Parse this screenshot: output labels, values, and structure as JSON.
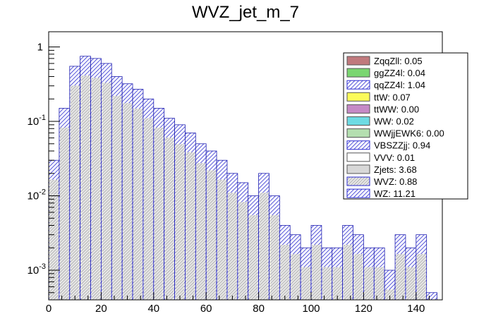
{
  "chart_data": {
    "type": "bar",
    "title": "WVZ_jet_m_7",
    "xlabel": "",
    "ylabel": "",
    "xlim": [
      0,
      150
    ],
    "ylim": [
      0.0004,
      1.6
    ],
    "y_scale": "log",
    "grid": false,
    "legend_position": "top-right",
    "x_ticks": [
      "0",
      "20",
      "40",
      "60",
      "80",
      "100",
      "120",
      "140"
    ],
    "y_ticks": [
      {
        "mantissa": "10",
        "exp": "-3"
      },
      {
        "mantissa": "10",
        "exp": "-2"
      },
      {
        "mantissa": "10",
        "exp": "-1"
      },
      {
        "mantissa": "1",
        "exp": ""
      }
    ],
    "stack_totals_approx": {
      "x_bin_centers": [
        2,
        6,
        10,
        14,
        18,
        22,
        26,
        30,
        34,
        38,
        42,
        46,
        50,
        54,
        58,
        62,
        66,
        70,
        74,
        78,
        82,
        86,
        90,
        94,
        98,
        102,
        106,
        110,
        114,
        118,
        122,
        126,
        130,
        134,
        138,
        142,
        146
      ],
      "values": [
        0.03,
        0.15,
        0.55,
        0.75,
        0.7,
        0.6,
        0.4,
        0.32,
        0.27,
        0.2,
        0.15,
        0.11,
        0.09,
        0.07,
        0.05,
        0.04,
        0.03,
        0.02,
        0.015,
        0.01,
        0.02,
        0.01,
        0.004,
        0.003,
        0.002,
        0.004,
        0.002,
        0.002,
        0.004,
        0.003,
        0.002,
        0.002,
        0.001,
        0.003,
        0.002,
        0.003,
        0.0005
      ]
    },
    "series": [
      {
        "name": "ZqqZll: 0.05",
        "color": "#c0797d",
        "hatch": false
      },
      {
        "name": "ggZZ4l: 0.04",
        "color": "#7ad671",
        "hatch": false
      },
      {
        "name": "qqZZ4l: 1.04",
        "color": "#4a4cc6",
        "hatch": true
      },
      {
        "name": "ttW: 0.07",
        "color": "#fbfb5a",
        "hatch": false
      },
      {
        "name": "ttWW: 0.00",
        "color": "#c58ac6",
        "hatch": false
      },
      {
        "name": "WW: 0.02",
        "color": "#6ddbe3",
        "hatch": false
      },
      {
        "name": "WWjjEWK6: 0.00",
        "color": "#b4dfb0",
        "hatch": false
      },
      {
        "name": "VBSZZjj: 0.94",
        "color": "#5e5eb0",
        "hatch": true
      },
      {
        "name": "VVV: 0.01",
        "color": "#ffffff",
        "hatch": false
      },
      {
        "name": "Zjets: 3.68",
        "color": "#d8d8d8",
        "hatch": false
      },
      {
        "name": "WVZ: 0.88",
        "color": "#9a9a9a",
        "hatch": true
      },
      {
        "name": "WZ: 11.21",
        "color": "#a0a0d8",
        "hatch": true
      }
    ]
  }
}
